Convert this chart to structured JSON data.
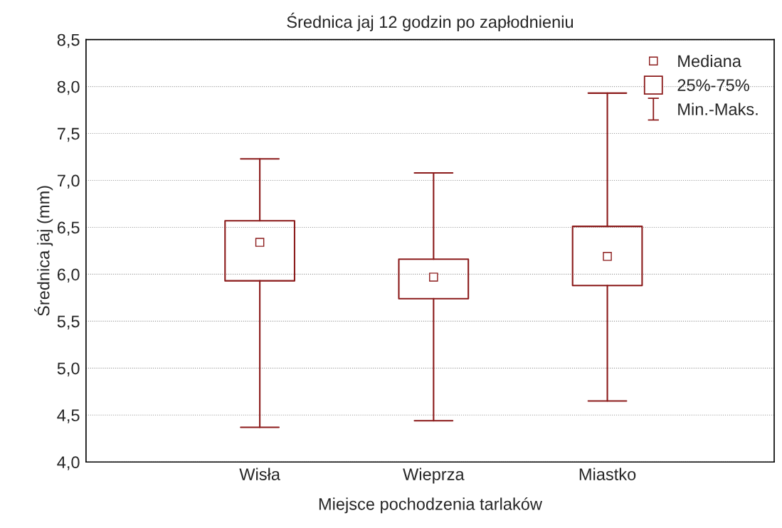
{
  "chart_data": {
    "type": "box",
    "title": "Średnica jaj 12 godzin po zapłodnieniu",
    "xlabel": "Miejsce pochodzenia tarlaków",
    "ylabel": "Średnica jaj (mm)",
    "categories": [
      "Wisła",
      "Wieprza",
      "Miastko"
    ],
    "series": [
      {
        "color": "#8b1a1a",
        "boxes": [
          {
            "low": 4.37,
            "q1": 5.93,
            "median": 6.34,
            "q3": 6.57,
            "high": 7.23
          },
          {
            "low": 4.44,
            "q1": 5.74,
            "median": 5.97,
            "q3": 6.16,
            "high": 7.08
          },
          {
            "low": 4.65,
            "q1": 5.88,
            "median": 6.19,
            "q3": 6.51,
            "high": 7.93
          }
        ]
      }
    ],
    "annotations": [
      "Mediana",
      "25%-75%",
      "Min.-Maks."
    ],
    "ylim": [
      4.0,
      8.5
    ],
    "yticks": [
      {
        "value": 4.0,
        "label": "4,0"
      },
      {
        "value": 4.5,
        "label": "4,5"
      },
      {
        "value": 5.0,
        "label": "5,0"
      },
      {
        "value": 5.5,
        "label": "5,5"
      },
      {
        "value": 6.0,
        "label": "6,0"
      },
      {
        "value": 6.5,
        "label": "6,5"
      },
      {
        "value": 7.0,
        "label": "7,0"
      },
      {
        "value": 7.5,
        "label": "7,5"
      },
      {
        "value": 8.0,
        "label": "8,0"
      },
      {
        "value": 8.5,
        "label": "8,5"
      }
    ],
    "grid": "y",
    "marker": "square"
  }
}
